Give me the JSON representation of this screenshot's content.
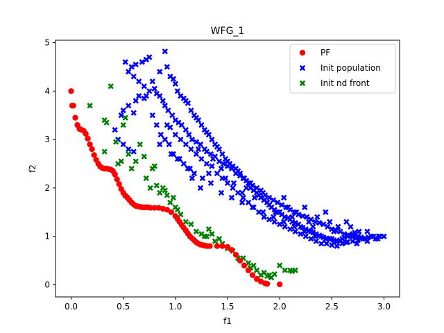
{
  "chart_data": {
    "type": "scatter",
    "title": "WFG_1",
    "xlabel": "f1",
    "ylabel": "f2",
    "xlim": [
      -0.15,
      3.15
    ],
    "ylim": [
      -0.25,
      5.05
    ],
    "xticks": [
      0.0,
      0.5,
      1.0,
      1.5,
      2.0,
      2.5,
      3.0
    ],
    "xtick_labels": [
      "0.0",
      "0.5",
      "1.0",
      "1.5",
      "2.0",
      "2.5",
      "3.0"
    ],
    "yticks": [
      0,
      1,
      2,
      3,
      4,
      5
    ],
    "ytick_labels": [
      "0",
      "1",
      "2",
      "3",
      "4",
      "5"
    ],
    "grid": false,
    "legend": {
      "placement": "top-right"
    },
    "series": [
      {
        "name": "PF",
        "marker": "circle",
        "color": "#ff0000",
        "x": [
          0.0,
          0.01,
          0.02,
          0.04,
          0.06,
          0.08,
          0.1,
          0.12,
          0.14,
          0.16,
          0.18,
          0.2,
          0.22,
          0.24,
          0.26,
          0.28,
          0.3,
          0.32,
          0.34,
          0.36,
          0.38,
          0.4,
          0.42,
          0.44,
          0.46,
          0.48,
          0.5,
          0.52,
          0.54,
          0.56,
          0.58,
          0.6,
          0.62,
          0.64,
          0.66,
          0.68,
          0.7,
          0.72,
          0.74,
          0.76,
          0.8,
          0.84,
          0.88,
          0.92,
          0.96,
          1.0,
          1.02,
          1.04,
          1.06,
          1.08,
          1.1,
          1.12,
          1.14,
          1.16,
          1.18,
          1.2,
          1.22,
          1.24,
          1.26,
          1.28,
          1.3,
          1.33,
          1.4,
          1.45,
          1.5,
          1.54,
          1.58,
          1.62,
          1.66,
          1.7,
          1.74,
          1.78,
          1.82,
          1.86,
          1.88,
          2.0
        ],
        "y": [
          4.0,
          3.7,
          3.7,
          3.45,
          3.3,
          3.22,
          3.2,
          3.18,
          3.12,
          3.02,
          2.9,
          2.8,
          2.68,
          2.58,
          2.5,
          2.44,
          2.41,
          2.4,
          2.4,
          2.39,
          2.38,
          2.35,
          2.28,
          2.18,
          2.08,
          1.98,
          1.9,
          1.84,
          1.8,
          1.75,
          1.7,
          1.66,
          1.63,
          1.62,
          1.61,
          1.6,
          1.6,
          1.6,
          1.6,
          1.59,
          1.59,
          1.59,
          1.57,
          1.55,
          1.5,
          1.42,
          1.36,
          1.3,
          1.24,
          1.18,
          1.12,
          1.06,
          1.0,
          0.96,
          0.92,
          0.88,
          0.85,
          0.83,
          0.82,
          0.81,
          0.8,
          0.8,
          0.8,
          0.8,
          0.78,
          0.72,
          0.62,
          0.5,
          0.4,
          0.3,
          0.2,
          0.12,
          0.07,
          0.03,
          0.02,
          0.01
        ]
      },
      {
        "name": "Init population",
        "marker": "X",
        "color": "#0000ff",
        "x": [
          0.52,
          0.58,
          0.62,
          0.68,
          0.72,
          0.75,
          0.55,
          0.6,
          0.65,
          0.7,
          0.78,
          0.85,
          0.9,
          0.92,
          0.95,
          0.98,
          1.0,
          1.02,
          1.05,
          1.08,
          1.1,
          1.12,
          1.15,
          1.18,
          1.2,
          1.22,
          1.25,
          1.28,
          1.3,
          1.32,
          1.35,
          1.38,
          1.4,
          1.42,
          1.45,
          1.48,
          1.5,
          1.52,
          1.55,
          1.58,
          1.6,
          1.62,
          1.65,
          1.68,
          1.7,
          1.72,
          1.75,
          1.78,
          1.8,
          1.82,
          1.85,
          1.88,
          1.9,
          1.92,
          1.95,
          1.98,
          2.0,
          2.02,
          2.05,
          2.08,
          2.1,
          2.12,
          2.15,
          2.18,
          2.2,
          2.22,
          2.25,
          2.28,
          2.3,
          2.32,
          2.35,
          2.38,
          2.4,
          2.42,
          2.45,
          2.48,
          2.5,
          2.52,
          2.55,
          2.58,
          2.6,
          2.62,
          2.65,
          2.68,
          2.7,
          2.72,
          2.75,
          2.78,
          2.8,
          2.85,
          2.9,
          2.95,
          3.0,
          0.48,
          0.5,
          0.55,
          0.6,
          0.62,
          0.65,
          0.7,
          0.72,
          0.75,
          0.8,
          0.82,
          0.85,
          0.88,
          0.9,
          0.93,
          0.97,
          1.0,
          1.03,
          1.06,
          1.1,
          1.13,
          1.16,
          1.2,
          1.24,
          1.28,
          1.3,
          1.34,
          1.38,
          1.42,
          1.46,
          1.5,
          1.54,
          1.58,
          1.62,
          1.66,
          1.7,
          1.74,
          1.78,
          1.82,
          1.86,
          1.9,
          1.94,
          1.98,
          2.02,
          2.06,
          2.1,
          2.14,
          2.18,
          2.22,
          2.26,
          2.3,
          2.34,
          2.38,
          2.42,
          2.46,
          2.5,
          2.54,
          2.58,
          2.62,
          2.66,
          2.7,
          2.74,
          2.78,
          2.82,
          0.92,
          0.95,
          1.0,
          1.05,
          1.1,
          1.15,
          1.2,
          1.25,
          1.3,
          1.35,
          1.4,
          1.45,
          1.5,
          1.55,
          1.6,
          1.65,
          1.7,
          1.75,
          1.8,
          1.85,
          1.9,
          1.95,
          2.0,
          2.05,
          2.1,
          2.15,
          2.2,
          2.25,
          2.3,
          2.35,
          2.4,
          2.45,
          2.5,
          2.55,
          2.6,
          2.65,
          2.7,
          2.75,
          0.42,
          0.45,
          0.5,
          0.55,
          0.6,
          0.85,
          0.9,
          0.98,
          1.02,
          1.08,
          1.14,
          1.18,
          1.22,
          1.26,
          1.32,
          1.36,
          1.44,
          1.48,
          1.52,
          1.56,
          1.64,
          1.68,
          1.72,
          1.76,
          1.84,
          1.88,
          1.92,
          1.96,
          2.04,
          2.08,
          2.12,
          2.16,
          2.24,
          2.28,
          2.32,
          2.36,
          2.44,
          2.48,
          2.52,
          2.56,
          2.64,
          2.68,
          2.72,
          2.76,
          2.84,
          2.88,
          2.92,
          2.96,
          0.78,
          0.82,
          0.86,
          0.94,
          0.96,
          1.04,
          1.12,
          1.16,
          1.24,
          1.34,
          1.44,
          1.54,
          1.64,
          1.74,
          1.84,
          1.94,
          2.04,
          2.14,
          2.24,
          2.34,
          2.44,
          2.54,
          2.64,
          2.74,
          2.84,
          2.94
        ],
        "y": [
          4.6,
          4.5,
          4.55,
          4.6,
          4.65,
          4.7,
          4.4,
          4.3,
          4.2,
          4.1,
          4.2,
          4.4,
          4.82,
          4.5,
          4.3,
          4.25,
          4.15,
          4.0,
          3.9,
          3.85,
          3.8,
          3.75,
          3.6,
          3.5,
          3.45,
          3.4,
          3.3,
          3.2,
          3.15,
          3.1,
          3.0,
          2.9,
          2.85,
          2.8,
          2.7,
          2.6,
          2.55,
          2.5,
          2.45,
          2.4,
          2.35,
          2.3,
          2.2,
          2.15,
          2.1,
          2.0,
          1.95,
          1.9,
          1.85,
          1.8,
          1.75,
          1.7,
          1.65,
          1.6,
          1.55,
          1.5,
          1.5,
          1.45,
          1.4,
          1.38,
          1.35,
          1.3,
          1.28,
          1.25,
          1.2,
          1.18,
          1.15,
          1.12,
          1.1,
          1.08,
          1.05,
          1.02,
          1.0,
          0.98,
          0.96,
          0.95,
          0.95,
          0.92,
          0.9,
          0.92,
          0.95,
          0.98,
          1.0,
          1.02,
          1.05,
          1.08,
          1.0,
          0.98,
          0.95,
          0.98,
          1.0,
          1.0,
          1.0,
          3.5,
          3.6,
          3.7,
          3.55,
          3.8,
          3.9,
          3.85,
          3.9,
          4.0,
          4.05,
          3.95,
          3.9,
          3.8,
          3.7,
          3.6,
          3.5,
          3.4,
          3.35,
          3.3,
          3.2,
          3.1,
          3.0,
          2.95,
          2.9,
          2.8,
          2.75,
          2.7,
          2.65,
          2.55,
          2.5,
          2.45,
          2.4,
          2.3,
          2.25,
          2.2,
          2.1,
          2.05,
          2.0,
          1.95,
          1.85,
          1.8,
          1.75,
          1.7,
          1.65,
          1.6,
          1.55,
          1.5,
          1.45,
          1.42,
          1.4,
          1.35,
          1.3,
          1.28,
          1.25,
          1.2,
          1.15,
          1.12,
          1.1,
          1.05,
          1.02,
          1.0,
          0.98,
          0.96,
          0.95,
          3.3,
          3.25,
          3.1,
          3.0,
          2.9,
          2.8,
          2.7,
          2.6,
          2.5,
          2.45,
          2.3,
          2.2,
          2.1,
          2.0,
          1.9,
          1.8,
          1.7,
          1.6,
          1.5,
          1.4,
          1.35,
          1.3,
          1.25,
          1.2,
          1.15,
          1.1,
          1.05,
          1.0,
          0.95,
          0.9,
          0.85,
          0.85,
          0.82,
          0.8,
          0.85,
          0.88,
          0.9,
          0.92,
          3.2,
          3.0,
          2.9,
          2.8,
          2.75,
          2.9,
          3.0,
          2.7,
          2.6,
          2.5,
          2.4,
          2.3,
          2.8,
          2.2,
          2.3,
          2.6,
          2.4,
          2.2,
          2.5,
          2.1,
          1.9,
          2.0,
          2.1,
          1.8,
          1.9,
          1.7,
          1.6,
          1.5,
          1.8,
          1.6,
          1.4,
          1.5,
          1.6,
          1.3,
          1.2,
          1.4,
          1.5,
          1.3,
          1.1,
          1.2,
          1.3,
          1.2,
          1.0,
          1.1,
          1.1,
          1.0,
          0.95,
          1.0,
          3.5,
          3.3,
          3.1,
          2.9,
          2.7,
          2.6,
          2.4,
          2.2,
          2.0,
          2.1,
          1.9,
          1.8,
          1.7,
          1.6,
          1.5,
          1.4,
          1.3,
          1.2,
          1.1,
          1.0,
          0.95,
          0.9,
          0.88,
          0.85,
          0.9,
          0.95
        ]
      },
      {
        "name": "Init nd front",
        "marker": "X",
        "color": "#008000",
        "x": [
          0.38,
          0.18,
          0.32,
          0.34,
          0.32,
          0.43,
          0.45,
          0.48,
          0.5,
          0.52,
          0.55,
          0.58,
          0.62,
          0.66,
          0.7,
          0.72,
          0.76,
          0.78,
          0.8,
          0.82,
          0.85,
          0.88,
          0.9,
          0.92,
          0.95,
          0.98,
          1.0,
          1.02,
          1.05,
          1.1,
          1.15,
          1.2,
          1.25,
          1.28,
          1.3,
          1.32,
          1.35,
          1.38,
          1.42,
          1.45,
          1.5,
          1.55,
          1.6,
          1.65,
          1.7,
          1.72,
          1.75,
          1.78,
          1.82,
          1.85,
          1.88,
          1.9,
          1.92,
          1.95,
          2.0,
          2.05,
          2.1,
          2.12,
          2.15
        ],
        "y": [
          4.1,
          3.7,
          3.4,
          3.35,
          2.75,
          2.95,
          2.5,
          2.55,
          3.3,
          3.45,
          2.7,
          2.4,
          2.55,
          2.9,
          2.65,
          2.2,
          2.0,
          2.4,
          2.45,
          2.05,
          1.9,
          2.0,
          1.95,
          1.85,
          1.7,
          1.8,
          1.6,
          1.55,
          1.45,
          1.3,
          1.25,
          1.1,
          1.05,
          1.0,
          1.0,
          1.15,
          1.05,
          0.9,
          0.95,
          0.85,
          0.75,
          0.7,
          0.55,
          0.55,
          0.45,
          0.35,
          0.4,
          0.3,
          0.2,
          0.25,
          0.18,
          0.2,
          0.15,
          0.22,
          0.4,
          0.3,
          0.3,
          0.28,
          0.3
        ]
      }
    ]
  }
}
